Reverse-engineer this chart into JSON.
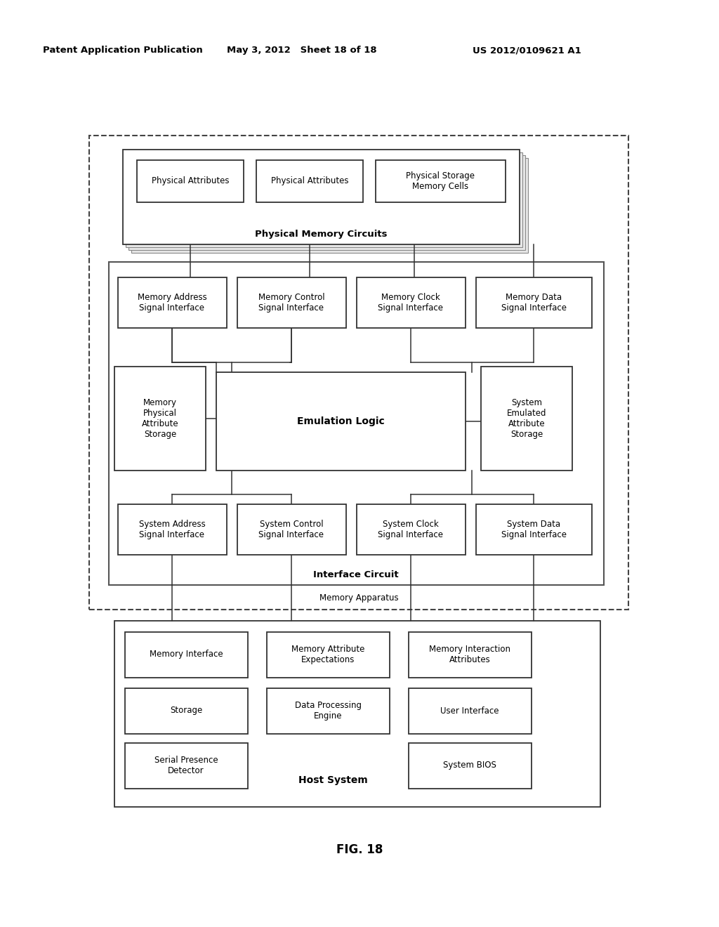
{
  "title": "FIG. 18",
  "header_left": "Patent Application Publication",
  "header_mid": "May 3, 2012   Sheet 18 of 18",
  "header_right": "US 2012/0109621 A1",
  "bg_color": "#ffffff",
  "box_edge": "#333333",
  "dashed_color": "#444444",
  "gray_edge": "#888888",
  "lw_main": 1.3,
  "lw_dashed": 1.5,
  "lw_line": 1.1,
  "font_header": 9.5,
  "font_label": 8.5,
  "font_bold_label": 9.5,
  "font_title": 11
}
